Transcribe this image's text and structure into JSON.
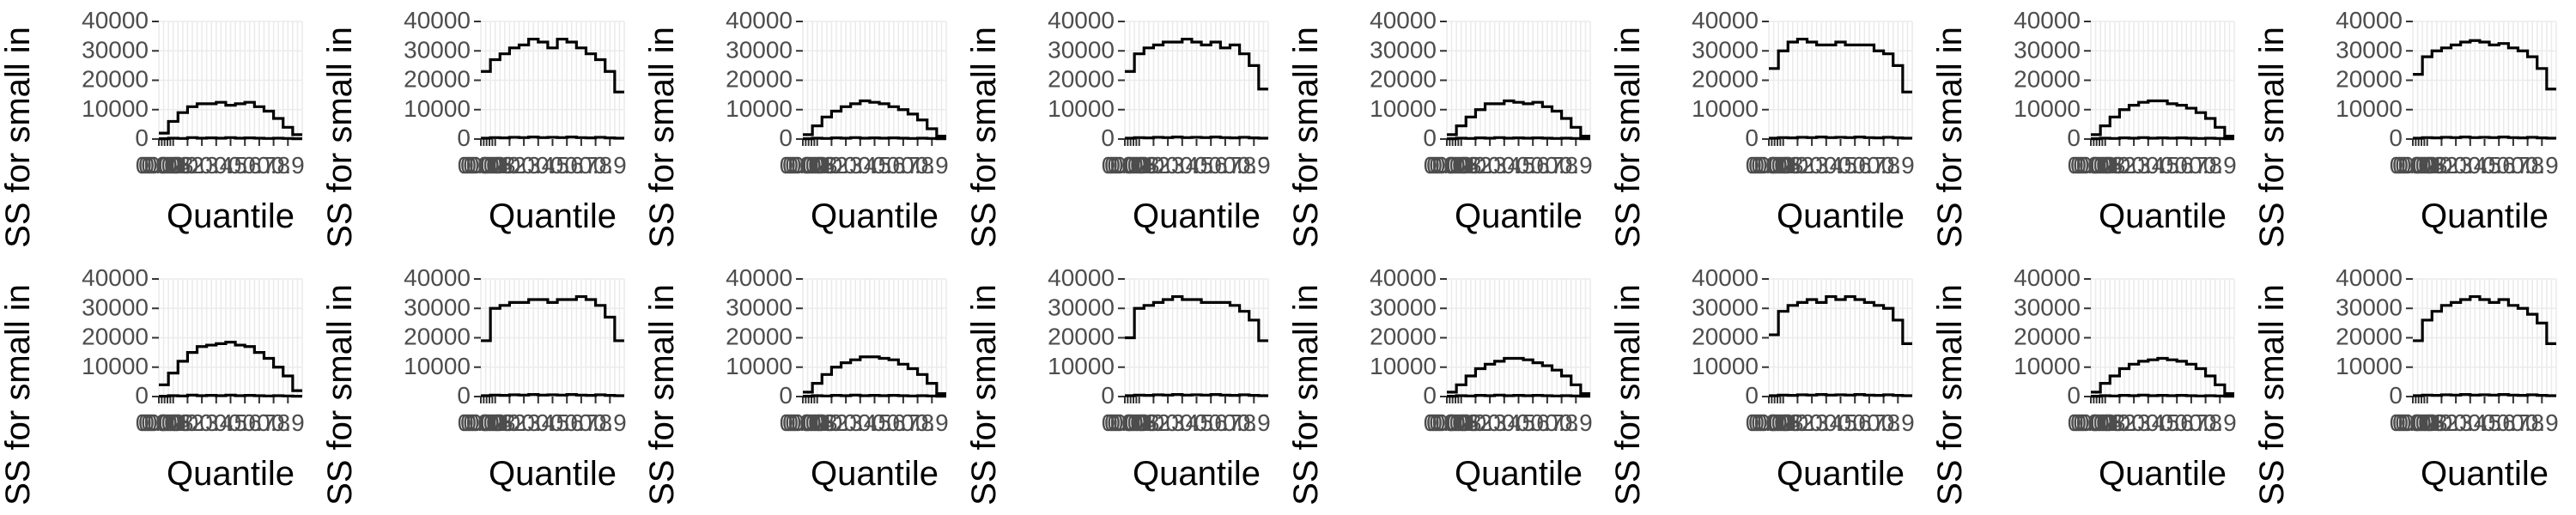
{
  "chart_data": {
    "type": "line",
    "step": true,
    "facets": 16,
    "layout": "2 rows x 8 columns",
    "xlabel": "Quantile",
    "ylabel": "SS for small in",
    "ylim": [
      0,
      40000
    ],
    "xlim": [
      0,
      1
    ],
    "y_ticks": [
      0,
      10000,
      20000,
      30000,
      40000
    ],
    "y_tick_labels": [
      "0",
      "10000",
      "20000",
      "30000",
      "40000"
    ],
    "x_ticks": [
      0.0,
      0.02,
      0.04,
      0.06,
      0.08,
      0.1,
      0.2,
      0.3,
      0.4,
      0.5,
      0.6,
      0.7,
      0.8,
      0.9
    ],
    "x_tick_labels": [
      "0.00",
      "0.02",
      "0.04",
      "0.06",
      "0.08",
      "0.1",
      "0.2",
      "0.3",
      "0.4",
      "0.5",
      "0.6",
      "0.7",
      "0.8",
      "0.9"
    ],
    "grid": true,
    "colors": {
      "panel": "#ffffff",
      "grid": "#ebebeb",
      "line": "#000000",
      "text": "#4d4d4d",
      "title": "#000000"
    },
    "panels": [
      {
        "upper": [
          2000,
          6000,
          9000,
          11000,
          12000,
          12000,
          12500,
          11500,
          12000,
          12500,
          11000,
          9500,
          7000,
          4000,
          1500
        ],
        "lower": [
          100,
          300,
          200,
          500,
          300,
          400,
          300,
          500,
          300,
          400,
          300,
          200,
          300,
          200,
          100
        ]
      },
      {
        "upper": [
          23000,
          27000,
          29000,
          31000,
          32000,
          34000,
          33000,
          31000,
          34000,
          33000,
          31000,
          29000,
          27000,
          23000,
          16000
        ],
        "lower": [
          300,
          500,
          400,
          600,
          500,
          700,
          500,
          600,
          500,
          700,
          500,
          400,
          600,
          400,
          300
        ]
      },
      {
        "upper": [
          1500,
          4500,
          7500,
          9500,
          11000,
          12000,
          13000,
          12500,
          12000,
          11000,
          10000,
          8500,
          6500,
          3500,
          1000
        ],
        "lower": [
          100,
          300,
          200,
          400,
          300,
          500,
          300,
          400,
          300,
          400,
          300,
          200,
          300,
          200,
          100
        ]
      },
      {
        "upper": [
          23000,
          29000,
          31000,
          32000,
          33000,
          33000,
          34000,
          33000,
          32000,
          33000,
          31000,
          32000,
          29000,
          25000,
          17000
        ],
        "lower": [
          300,
          500,
          400,
          600,
          500,
          700,
          500,
          600,
          500,
          700,
          500,
          400,
          600,
          400,
          300
        ]
      },
      {
        "upper": [
          1500,
          4500,
          7500,
          10000,
          12000,
          12000,
          13000,
          12500,
          12000,
          12500,
          11000,
          9500,
          7000,
          4000,
          1000
        ],
        "lower": [
          100,
          300,
          200,
          400,
          300,
          500,
          300,
          400,
          300,
          400,
          300,
          200,
          300,
          200,
          100
        ]
      },
      {
        "upper": [
          24000,
          30000,
          33000,
          34000,
          33000,
          32000,
          32000,
          33000,
          32000,
          32000,
          32000,
          30000,
          29000,
          25000,
          16000
        ],
        "lower": [
          300,
          500,
          400,
          600,
          500,
          700,
          500,
          600,
          500,
          700,
          500,
          400,
          600,
          400,
          300
        ]
      },
      {
        "upper": [
          1500,
          4500,
          7500,
          10000,
          11500,
          12500,
          13000,
          13000,
          12000,
          11500,
          10500,
          9000,
          7000,
          4000,
          1000
        ],
        "lower": [
          100,
          300,
          200,
          400,
          300,
          500,
          300,
          400,
          300,
          400,
          300,
          200,
          300,
          200,
          100
        ]
      },
      {
        "upper": [
          22000,
          28000,
          30000,
          31000,
          32000,
          33000,
          33500,
          33000,
          32000,
          32500,
          31000,
          30000,
          28000,
          24000,
          17000
        ],
        "lower": [
          300,
          500,
          400,
          600,
          500,
          700,
          500,
          600,
          500,
          700,
          500,
          400,
          600,
          400,
          300
        ]
      },
      {
        "upper": [
          4000,
          8000,
          12000,
          15000,
          17000,
          17500,
          18000,
          18500,
          17500,
          17000,
          15000,
          13000,
          10000,
          7000,
          2000
        ],
        "lower": [
          100,
          300,
          200,
          500,
          300,
          400,
          300,
          500,
          300,
          400,
          300,
          200,
          300,
          200,
          100
        ]
      },
      {
        "upper": [
          19000,
          30000,
          31000,
          32000,
          32000,
          33000,
          33000,
          32000,
          33000,
          33000,
          34000,
          33000,
          31000,
          27000,
          19000
        ],
        "lower": [
          300,
          500,
          400,
          600,
          500,
          700,
          500,
          600,
          500,
          700,
          500,
          400,
          600,
          400,
          300
        ]
      },
      {
        "upper": [
          1500,
          4500,
          7500,
          10000,
          11500,
          12500,
          13500,
          13500,
          13000,
          12500,
          11000,
          9500,
          7500,
          4500,
          1000
        ],
        "lower": [
          100,
          300,
          200,
          400,
          300,
          500,
          300,
          400,
          300,
          400,
          300,
          200,
          300,
          200,
          100
        ]
      },
      {
        "upper": [
          20000,
          30000,
          31000,
          32000,
          33000,
          34000,
          33000,
          33000,
          32000,
          32000,
          32000,
          31000,
          29000,
          26000,
          19000
        ],
        "lower": [
          300,
          500,
          400,
          600,
          500,
          700,
          500,
          600,
          500,
          700,
          500,
          400,
          600,
          400,
          300
        ]
      },
      {
        "upper": [
          1500,
          4000,
          7000,
          9500,
          11000,
          12000,
          13000,
          13000,
          12500,
          11500,
          10500,
          9000,
          7000,
          4000,
          1000
        ],
        "lower": [
          100,
          300,
          200,
          400,
          300,
          500,
          300,
          400,
          300,
          400,
          300,
          200,
          300,
          200,
          100
        ]
      },
      {
        "upper": [
          21000,
          29000,
          31000,
          32000,
          33000,
          32000,
          34000,
          33000,
          34000,
          33000,
          32000,
          31000,
          30000,
          26000,
          18000
        ],
        "lower": [
          300,
          500,
          400,
          600,
          500,
          700,
          500,
          600,
          500,
          700,
          500,
          400,
          600,
          400,
          300
        ]
      },
      {
        "upper": [
          1500,
          4500,
          7000,
          9500,
          11000,
          12000,
          12500,
          13000,
          12500,
          12000,
          11000,
          9500,
          7000,
          4000,
          1000
        ],
        "lower": [
          100,
          300,
          200,
          400,
          300,
          500,
          300,
          400,
          300,
          400,
          300,
          200,
          300,
          200,
          100
        ]
      },
      {
        "upper": [
          19000,
          26000,
          29000,
          31000,
          32000,
          33000,
          34000,
          33000,
          32000,
          33000,
          31000,
          30000,
          28000,
          25000,
          18000
        ],
        "lower": [
          300,
          500,
          400,
          600,
          500,
          700,
          500,
          600,
          500,
          700,
          500,
          400,
          600,
          400,
          300
        ]
      }
    ]
  }
}
